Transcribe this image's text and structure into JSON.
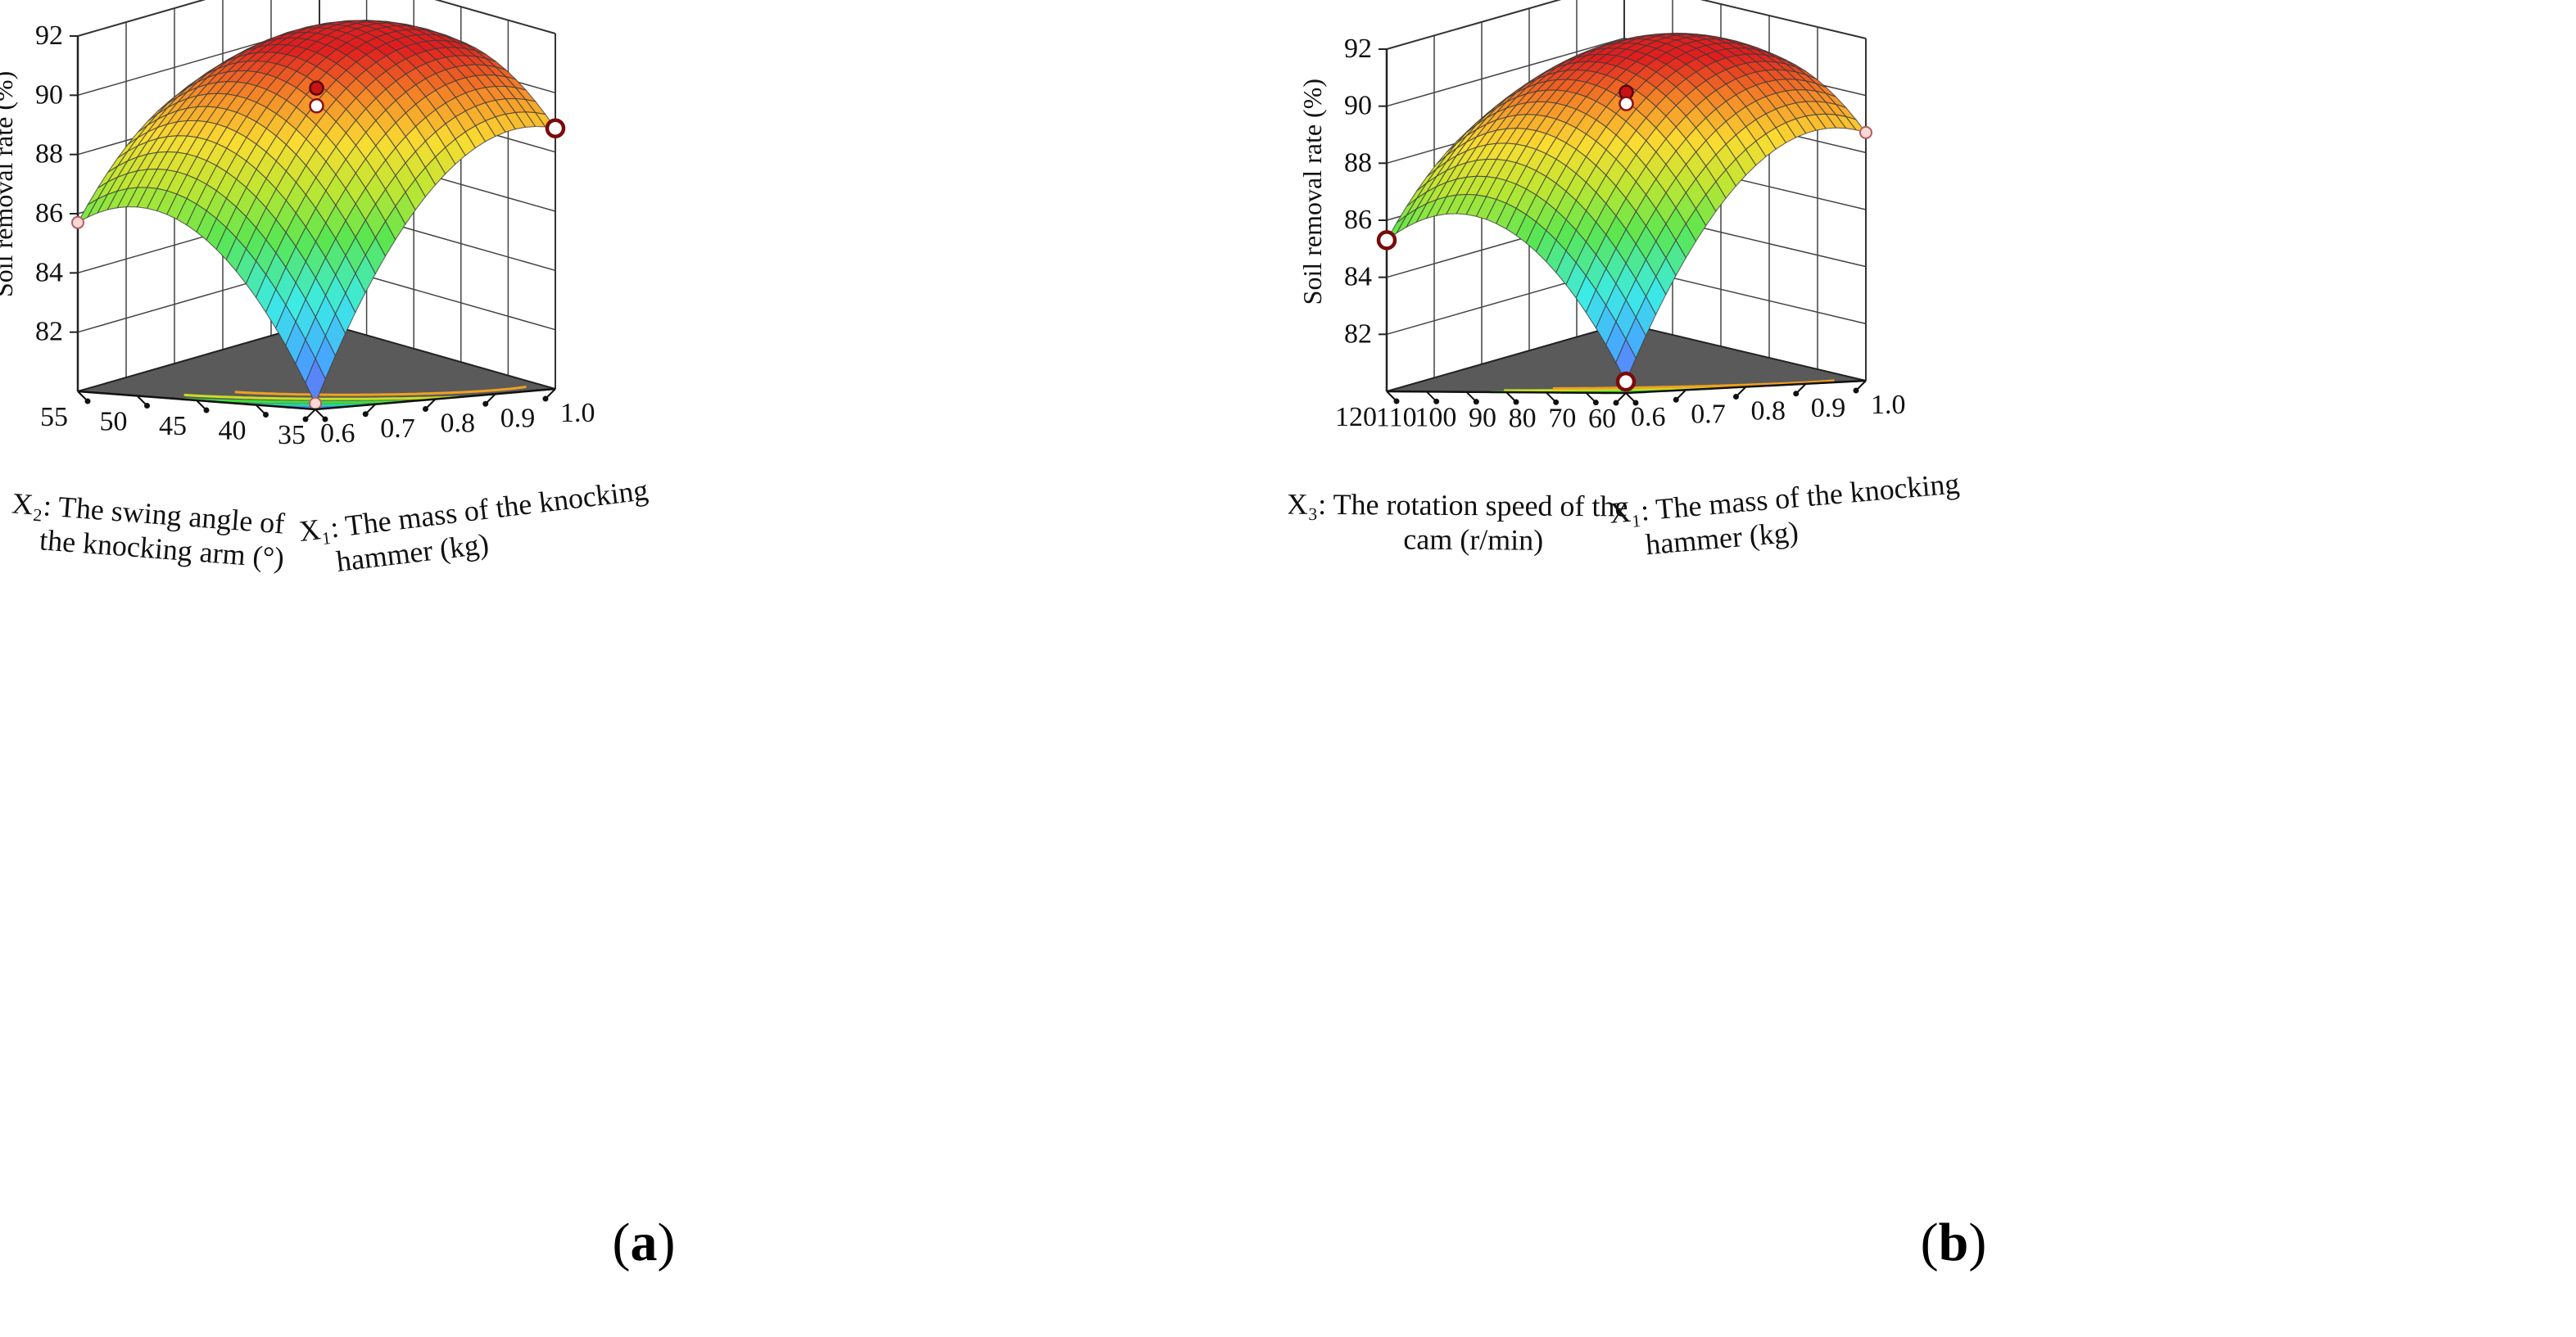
{
  "chart_data": [
    {
      "type": "surface3d",
      "panel_label": "a",
      "zlabel": "Soil removal rate (%)",
      "zticks": [
        "92",
        "90",
        "88",
        "86",
        "84",
        "82"
      ],
      "zlim": [
        80,
        92
      ],
      "x1_label_line1": "X₁: The mass of the knocking",
      "x1_label_line2": "hammer (kg)",
      "x1_ticks": [
        "0.6",
        "0.7",
        "0.8",
        "0.9",
        "1.0"
      ],
      "x1_range": [
        0.6,
        1.0
      ],
      "x2_label_line1": "X₂: The swing angle of",
      "x2_label_line2": "the knocking arm (°)",
      "x2_ticks": [
        "35",
        "40",
        "45",
        "50",
        "55"
      ],
      "x2_range": [
        35,
        55
      ],
      "surface_corners": {
        "low_low": 80.2,
        "high_low": 88.8,
        "low_high": 85.7,
        "high_high": 89.0
      },
      "peak": 91.4,
      "design_points": [
        {
          "u": 0.5,
          "v": 0.5,
          "z": 90.2,
          "style": "red"
        },
        {
          "u": 0.5,
          "v": 0.5,
          "z": 89.6,
          "style": "white"
        },
        {
          "u": 1.0,
          "v": 0.0,
          "z": 88.8,
          "style": "white-ring"
        },
        {
          "u": 0.0,
          "v": 1.0,
          "z": 85.7,
          "style": "pink"
        },
        {
          "u": 0.0,
          "v": 0.0,
          "z": 80.2,
          "style": "pink"
        }
      ],
      "contour_levels": [
        82,
        84,
        86,
        88,
        90
      ]
    },
    {
      "type": "surface3d",
      "panel_label": "b",
      "zlabel": "Soil removal rate (%)",
      "zticks": [
        "92",
        "90",
        "88",
        "86",
        "84",
        "82"
      ],
      "zlim": [
        80,
        92
      ],
      "x1_label_line1": "X₁: The mass of the knocking",
      "x1_label_line2": "hammer (kg)",
      "x1_ticks": [
        "0.6",
        "0.7",
        "0.8",
        "0.9",
        "1.0"
      ],
      "x1_range": [
        0.6,
        1.0
      ],
      "x2_label_line1": "X₃: The rotation speed of the",
      "x2_label_line2": "cam (r/min)",
      "x2_ticks": [
        "60",
        "70",
        "80",
        "90",
        "100",
        "110",
        "120"
      ],
      "x2_range": [
        60,
        120
      ],
      "surface_corners": {
        "low_low": 80.4,
        "high_low": 88.7,
        "low_high": 85.3,
        "high_high": 88.6
      },
      "peak": 91.5,
      "design_points": [
        {
          "u": 0.5,
          "v": 0.5,
          "z": 90.3,
          "style": "red"
        },
        {
          "u": 0.5,
          "v": 0.5,
          "z": 89.9,
          "style": "white"
        },
        {
          "u": 0.0,
          "v": 1.0,
          "z": 85.3,
          "style": "white-ring"
        },
        {
          "u": 0.0,
          "v": 0.0,
          "z": 80.4,
          "style": "white-ring"
        },
        {
          "u": 1.0,
          "v": 0.0,
          "z": 88.7,
          "style": "pink"
        }
      ],
      "contour_levels": [
        82,
        84,
        86,
        88,
        90
      ]
    }
  ]
}
